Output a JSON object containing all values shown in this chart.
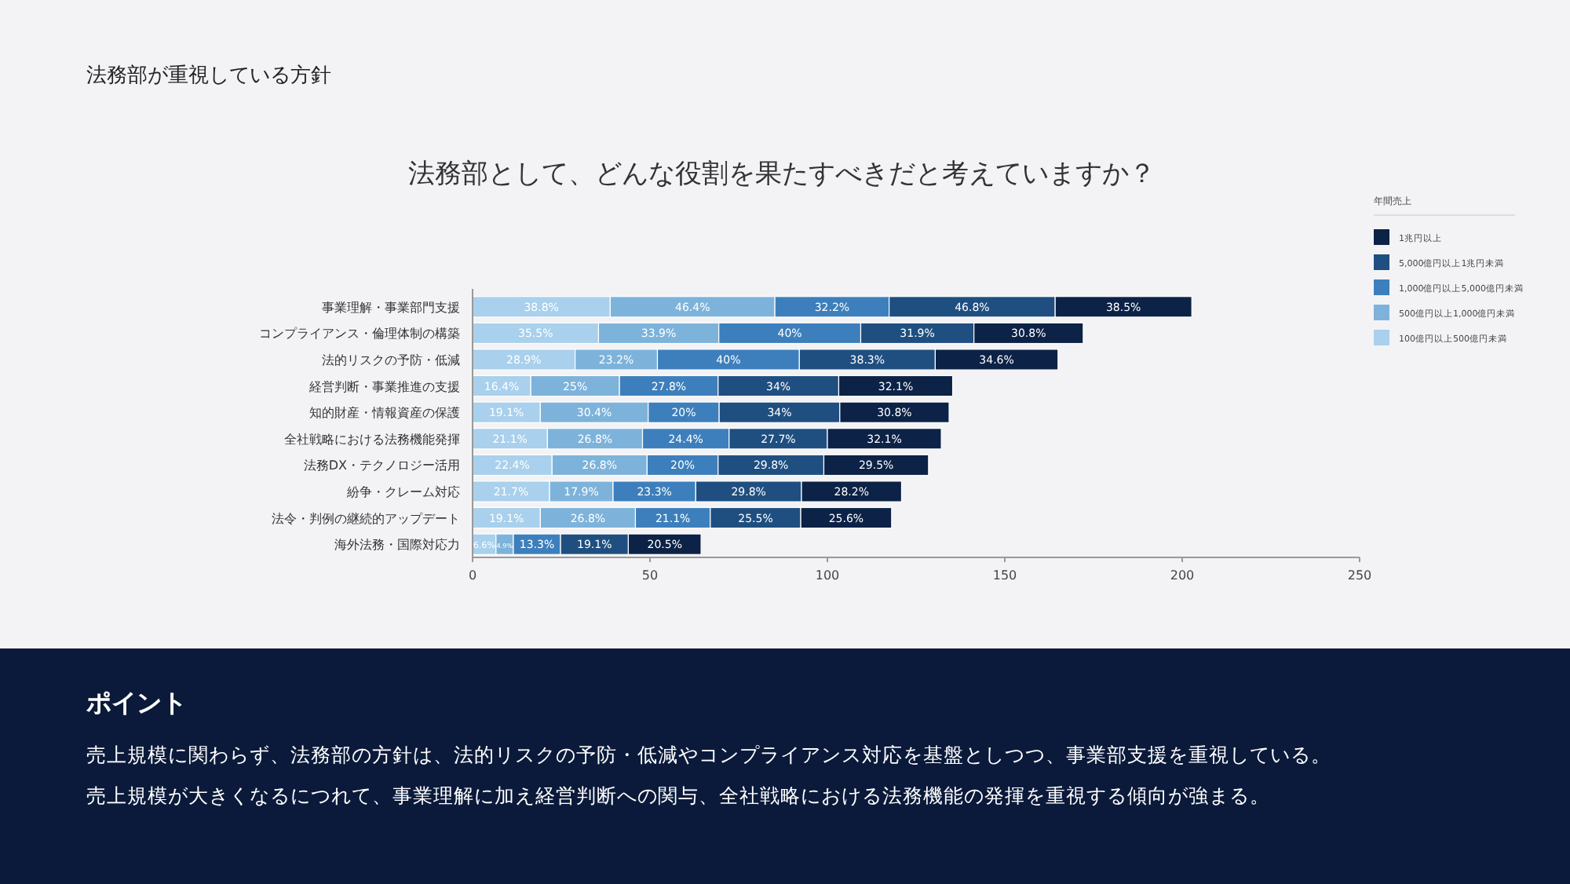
{
  "chart_data": {
    "type": "bar",
    "orientation": "horizontal",
    "stacked": true,
    "title": "法務部として、どんな役割を果たすべきだと考えていますか？",
    "categories": [
      "事業理解・事業部門支援",
      "コンプライアンス・倫理体制の構築",
      "法的リスクの予防・低減",
      "経営判断・事業推進の支援",
      "知的財産・情報資産の保護",
      "全社戦略における法務機能発揮",
      "法務DX・テクノロジー活用",
      "紛争・クレーム対応",
      "法令・判例の継続的アップデート",
      "海外法務・国際対応力"
    ],
    "series": [
      {
        "name": "100億円以上500億円未満",
        "color": "#a9d0ec",
        "values": [
          38.8,
          35.5,
          28.9,
          16.4,
          19.1,
          21.1,
          22.4,
          21.7,
          19.1,
          6.6
        ],
        "value_labels": [
          "38.8%",
          "35.5%",
          "28.9%",
          "16.4%",
          "19.1%",
          "21.1%",
          "22.4%",
          "21.7%",
          "19.1%",
          "6.6%"
        ]
      },
      {
        "name": "500億円以上1,000億円未満",
        "color": "#7db3db",
        "values": [
          46.4,
          33.9,
          23.2,
          25,
          30.4,
          26.8,
          26.8,
          17.9,
          26.8,
          4.9
        ],
        "value_labels": [
          "46.4%",
          "33.9%",
          "23.2%",
          "25%",
          "30.4%",
          "26.8%",
          "26.8%",
          "17.9%",
          "26.8%",
          "4.9%"
        ]
      },
      {
        "name": "1,000億円以上5,000億円未満",
        "color": "#3d7fbc",
        "values": [
          32.2,
          40,
          40,
          27.8,
          20,
          24.4,
          20,
          23.3,
          21.1,
          13.3
        ],
        "value_labels": [
          "32.2%",
          "40%",
          "40%",
          "27.8%",
          "20%",
          "24.4%",
          "20%",
          "23.3%",
          "21.1%",
          "13.3%"
        ]
      },
      {
        "name": "5,000億円以上1兆円未満",
        "color": "#1f4f80",
        "values": [
          46.8,
          31.9,
          38.3,
          34,
          34,
          27.7,
          29.8,
          29.8,
          25.5,
          19.1
        ],
        "value_labels": [
          "46.8%",
          "31.9%",
          "38.3%",
          "34%",
          "34%",
          "27.7%",
          "29.8%",
          "29.8%",
          "25.5%",
          "19.1%"
        ]
      },
      {
        "name": "1兆円以上",
        "color": "#0c2246",
        "values": [
          38.5,
          30.8,
          34.6,
          32.1,
          30.8,
          32.1,
          29.5,
          28.2,
          25.6,
          20.5
        ],
        "value_labels": [
          "38.5%",
          "30.8%",
          "34.6%",
          "32.1%",
          "30.8%",
          "32.1%",
          "29.5%",
          "28.2%",
          "25.6%",
          "20.5%"
        ]
      }
    ],
    "xlim": [
      0,
      250
    ],
    "xticks": [
      0,
      50,
      100,
      150,
      200,
      250
    ],
    "legend": "top right",
    "legend_title": "年間売上",
    "grid": false,
    "annotations": [
      "法務部が重視している方針",
      "ポイント",
      "売上規模に関わらず、法務部の方針は、法的リスクの予防・低減やコンプライアンス対応を基盤としつつ、事業部支援を重視している。",
      "売上規模が大きくなるにつれて、事業理解に加え経営判断への関与、全社戦略における法務機能の発揮を重視する傾向が強まる。"
    ]
  }
}
